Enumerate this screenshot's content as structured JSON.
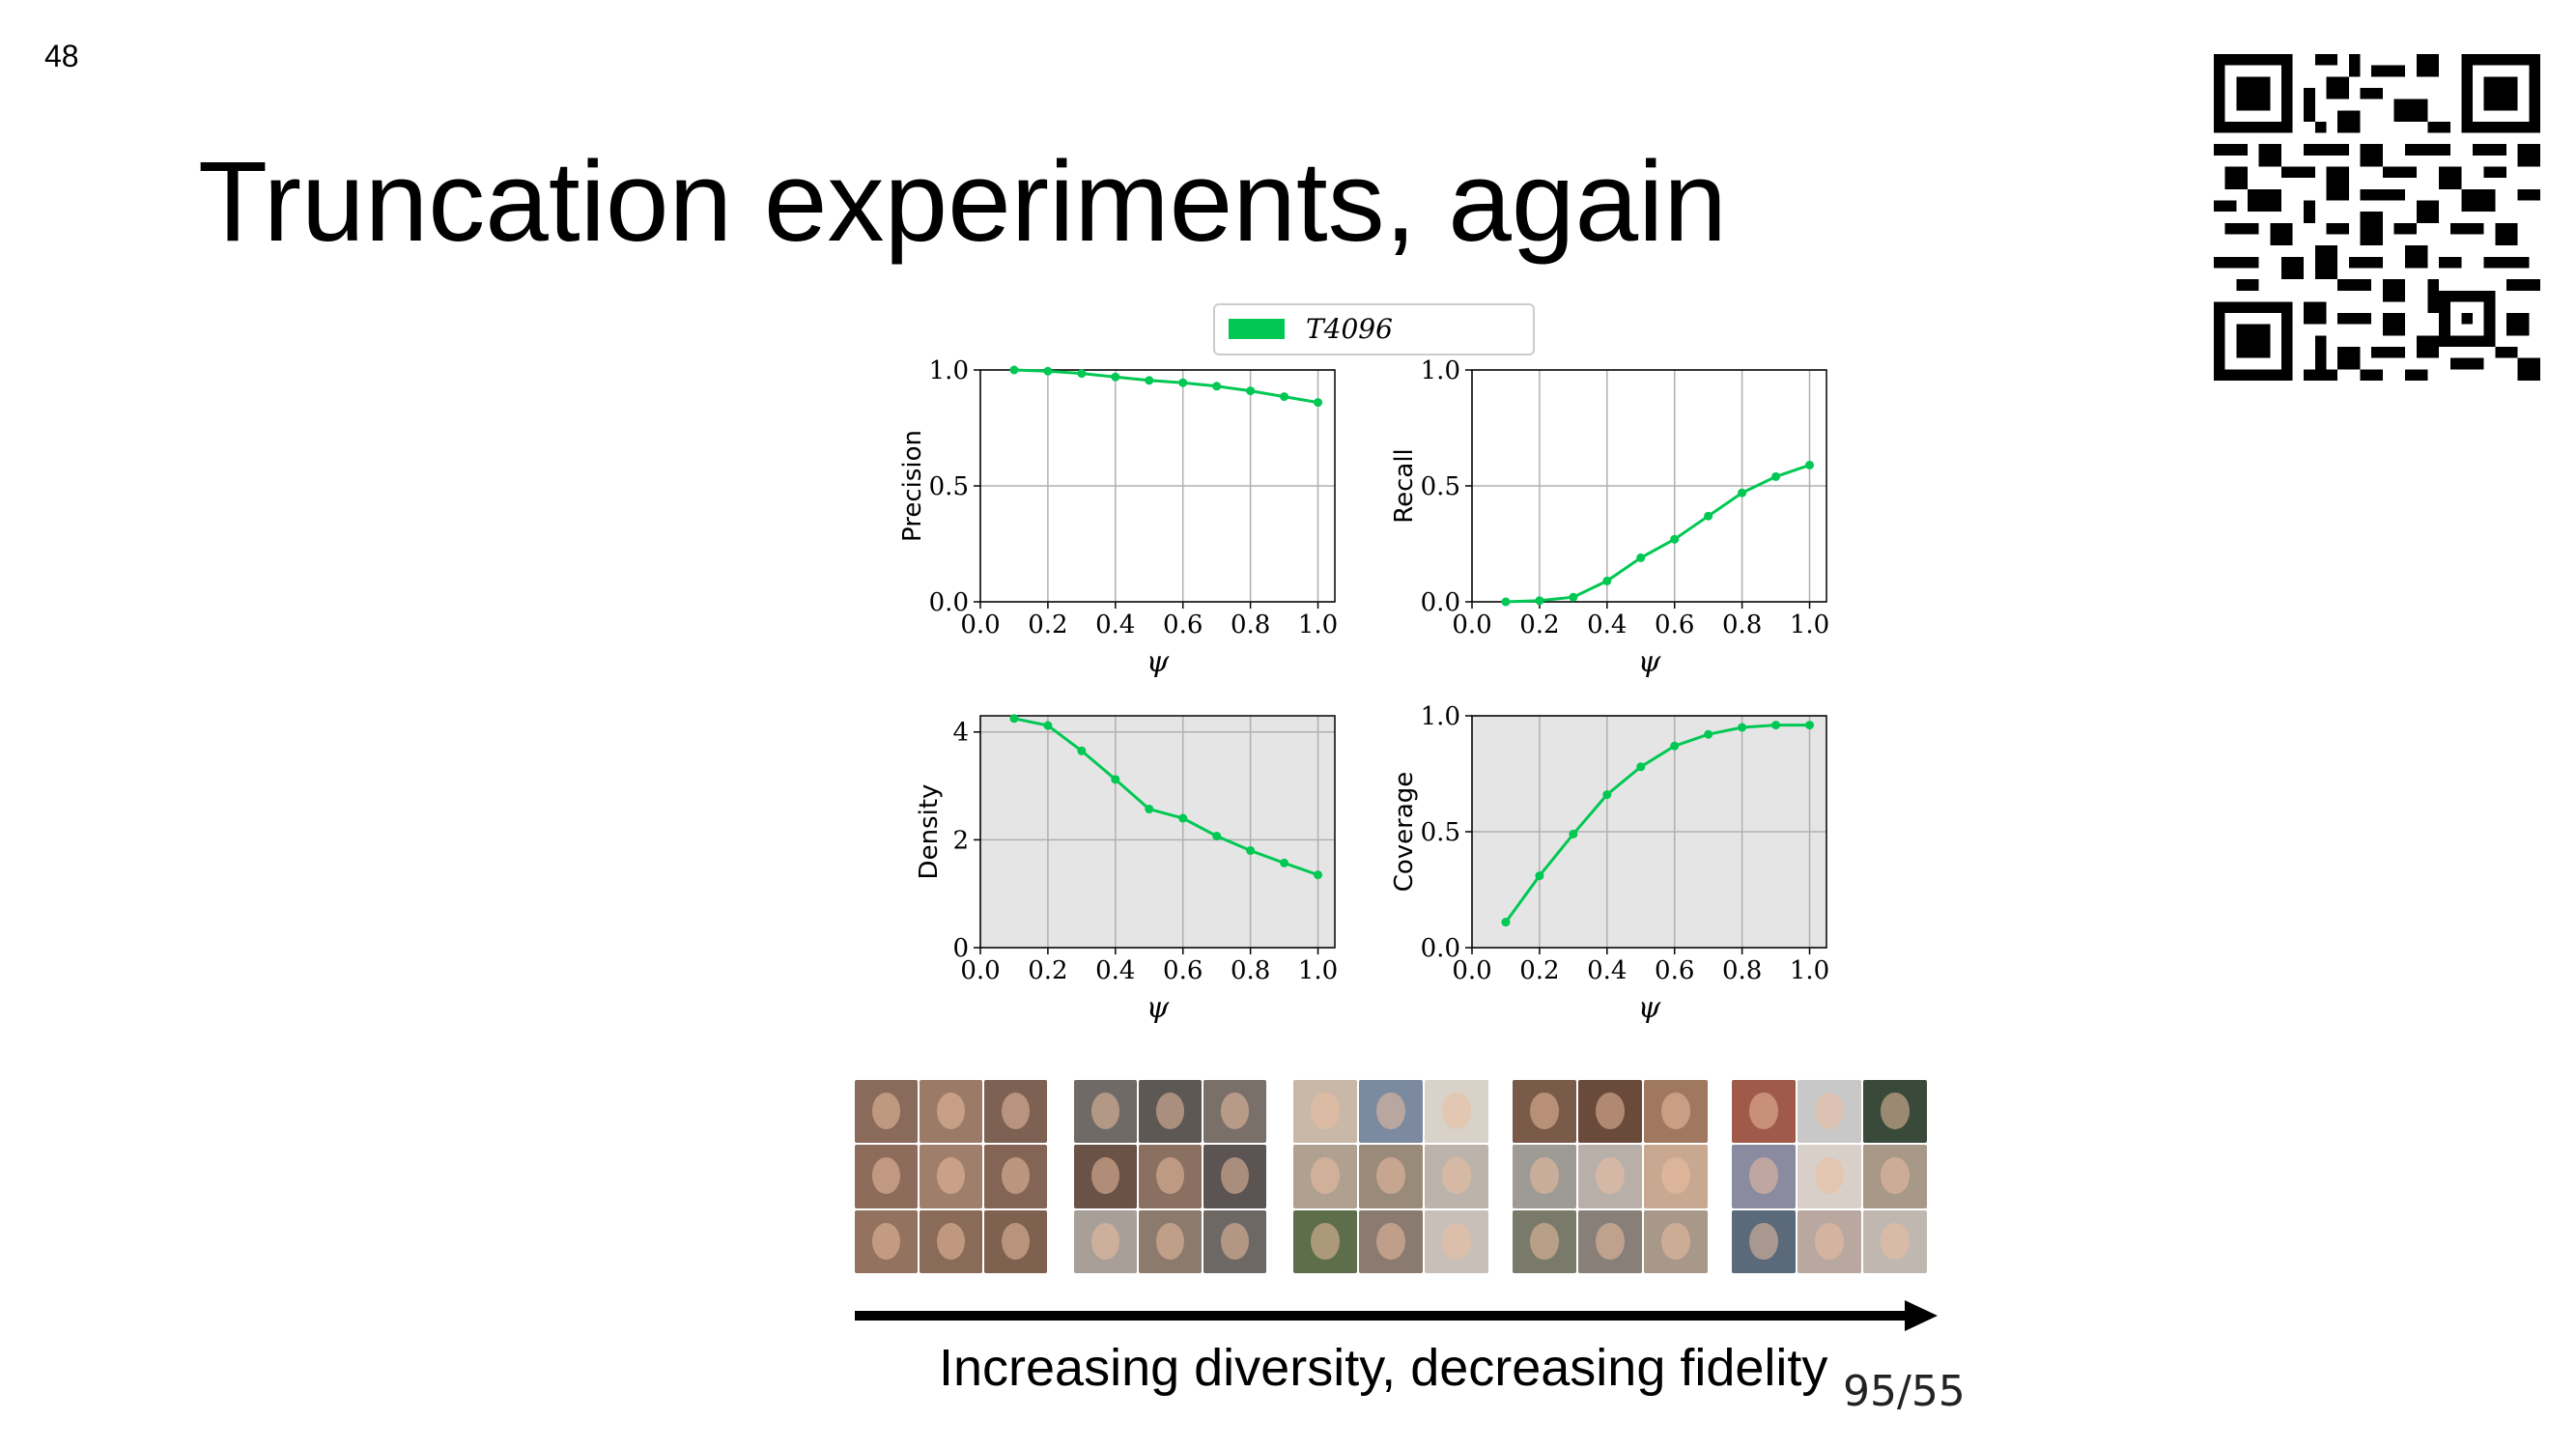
{
  "slide": {
    "number": "48",
    "title": "Truncation experiments, again",
    "page_counter": "95/55"
  },
  "caption": "Increasing diversity, decreasing fidelity",
  "colors": {
    "series": "#00c853",
    "grid_bg": "#e5e5e5"
  },
  "chart_data": [
    {
      "type": "line",
      "title": "",
      "xlabel": "ψ",
      "ylabel": "Precision",
      "xlim": [
        0.0,
        1.05
      ],
      "ylim": [
        0.0,
        1.0
      ],
      "xticks": [
        "0.0",
        "0.2",
        "0.4",
        "0.6",
        "0.8",
        "1.0"
      ],
      "yticks": [
        "0.0",
        "0.5",
        "1.0"
      ],
      "legend": {
        "placement": "top-center",
        "entries": [
          "T4096"
        ]
      },
      "series": [
        {
          "name": "T4096",
          "x": [
            0.1,
            0.2,
            0.3,
            0.4,
            0.5,
            0.6,
            0.7,
            0.8,
            0.9,
            1.0
          ],
          "values": [
            1.0,
            0.995,
            0.985,
            0.97,
            0.955,
            0.945,
            0.93,
            0.91,
            0.885,
            0.86
          ]
        }
      ],
      "grid": true,
      "background": "white"
    },
    {
      "type": "line",
      "title": "",
      "xlabel": "ψ",
      "ylabel": "Recall",
      "xlim": [
        0.0,
        1.05
      ],
      "ylim": [
        0.0,
        1.0
      ],
      "xticks": [
        "0.0",
        "0.2",
        "0.4",
        "0.6",
        "0.8",
        "1.0"
      ],
      "yticks": [
        "0.0",
        "0.5",
        "1.0"
      ],
      "series": [
        {
          "name": "T4096",
          "x": [
            0.1,
            0.2,
            0.3,
            0.4,
            0.5,
            0.6,
            0.7,
            0.8,
            0.9,
            1.0
          ],
          "values": [
            0.0,
            0.005,
            0.02,
            0.09,
            0.19,
            0.27,
            0.37,
            0.47,
            0.54,
            0.59
          ]
        }
      ],
      "grid": true,
      "background": "white"
    },
    {
      "type": "line",
      "title": "",
      "xlabel": "ψ",
      "ylabel": "Density",
      "xlim": [
        0.0,
        1.05
      ],
      "ylim": [
        0,
        4.3
      ],
      "xticks": [
        "0.0",
        "0.2",
        "0.4",
        "0.6",
        "0.8",
        "1.0"
      ],
      "yticks": [
        "0",
        "2",
        "4"
      ],
      "series": [
        {
          "name": "T4096",
          "x": [
            0.1,
            0.2,
            0.3,
            0.4,
            0.5,
            0.6,
            0.7,
            0.8,
            0.9,
            1.0
          ],
          "values": [
            4.25,
            4.12,
            3.65,
            3.12,
            2.57,
            2.4,
            2.07,
            1.8,
            1.57,
            1.35
          ]
        }
      ],
      "grid": true,
      "background": "gray"
    },
    {
      "type": "line",
      "title": "",
      "xlabel": "ψ",
      "ylabel": "Coverage",
      "xlim": [
        0.0,
        1.05
      ],
      "ylim": [
        0.0,
        1.0
      ],
      "xticks": [
        "0.0",
        "0.2",
        "0.4",
        "0.6",
        "0.8",
        "1.0"
      ],
      "yticks": [
        "0.0",
        "0.5",
        "1.0"
      ],
      "series": [
        {
          "name": "T4096",
          "x": [
            0.1,
            0.2,
            0.3,
            0.4,
            0.5,
            0.6,
            0.7,
            0.8,
            0.9,
            1.0
          ],
          "values": [
            0.11,
            0.31,
            0.49,
            0.66,
            0.78,
            0.87,
            0.92,
            0.95,
            0.96,
            0.96
          ]
        }
      ],
      "grid": true,
      "background": "gray"
    }
  ],
  "face_grids": [
    {
      "tones": [
        "#8a6a5a",
        "#9b7a68",
        "#7d6152",
        "#8e6c5b",
        "#a07e6c",
        "#846555",
        "#93725f",
        "#8a6a58",
        "#7f6150"
      ]
    },
    {
      "tones": [
        "#6f6a66",
        "#5e5854",
        "#7a706a",
        "#6a5246",
        "#8a7060",
        "#5c5452",
        "#a89f98",
        "#8c7a6c",
        "#6e6864"
      ]
    },
    {
      "tones": [
        "#c9b8a8",
        "#7c8aa0",
        "#d8d2c8",
        "#b0a090",
        "#9a8a7a",
        "#bcb4aa",
        "#5e6e4a",
        "#8a7a70",
        "#c8c0b8"
      ]
    },
    {
      "tones": [
        "#7a5a48",
        "#6a4a3a",
        "#a07860",
        "#9e9a94",
        "#b8b0a8",
        "#c8a890",
        "#7a7a6a",
        "#888078",
        "#a8988a"
      ]
    },
    {
      "tones": [
        "#a05a4a",
        "#c8c8c8",
        "#3a4a3a",
        "#8a8aa0",
        "#d8d0c8",
        "#a89888",
        "#5a6a7a",
        "#b8a8a0",
        "#c0b8b0"
      ]
    }
  ]
}
